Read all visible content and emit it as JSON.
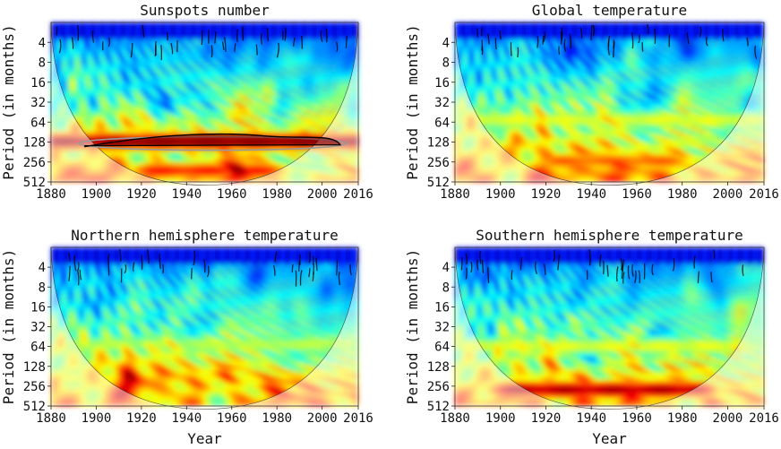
{
  "chart_data": [
    {
      "type": "heatmap",
      "title": "Sunspots number",
      "xlabel": "",
      "ylabel": "Period (in months)",
      "xticks": [
        "1880",
        "1900",
        "1920",
        "1940",
        "1960",
        "1980",
        "2000",
        "2016"
      ],
      "yticks": [
        "4",
        "8",
        "16",
        "32",
        "64",
        "128",
        "256",
        "512"
      ],
      "xlim": [
        1880,
        2016
      ],
      "ylim": [
        2,
        512
      ],
      "yscale": "log2",
      "colormap": "jet",
      "cone_of_influence": true,
      "dominant_period_months": 128,
      "significant_band": {
        "start_year": 1895,
        "end_year": 2008,
        "period_low": 100,
        "period_high": 150
      },
      "high_power_regions": [
        {
          "start_year": 1880,
          "end_year": 2016,
          "period": 128,
          "strength": 0.97
        },
        {
          "start_year": 1925,
          "end_year": 1975,
          "period": 360,
          "strength": 0.85
        }
      ]
    },
    {
      "type": "heatmap",
      "title": "Global temperature",
      "xlabel": "",
      "ylabel": "Period (in months)",
      "xticks": [
        "1880",
        "1900",
        "1920",
        "1940",
        "1960",
        "1980",
        "2000",
        "2016"
      ],
      "yticks": [
        "4",
        "8",
        "16",
        "32",
        "64",
        "128",
        "256",
        "512"
      ],
      "xlim": [
        1880,
        2016
      ],
      "ylim": [
        2,
        512
      ],
      "yscale": "log2",
      "colormap": "jet",
      "cone_of_influence": true,
      "high_power_regions": [
        {
          "start_year": 1925,
          "end_year": 1975,
          "period": 256,
          "strength": 0.78
        },
        {
          "start_year": 1885,
          "end_year": 2010,
          "period": 60,
          "strength": 0.6
        }
      ]
    },
    {
      "type": "heatmap",
      "title": "Northern hemisphere temperature",
      "xlabel": "Year",
      "ylabel": "Period (in months)",
      "xticks": [
        "1880",
        "1900",
        "1920",
        "1940",
        "1960",
        "1980",
        "2000",
        "2016"
      ],
      "yticks": [
        "4",
        "8",
        "16",
        "32",
        "64",
        "128",
        "256",
        "512"
      ],
      "xlim": [
        1880,
        2016
      ],
      "ylim": [
        2,
        512
      ],
      "yscale": "log2",
      "colormap": "jet",
      "cone_of_influence": true,
      "high_power_regions": [
        {
          "start_year": 1890,
          "end_year": 2010,
          "period": 200,
          "strength": 0.62
        },
        {
          "start_year": 1885,
          "end_year": 2010,
          "period": 60,
          "strength": 0.55
        }
      ]
    },
    {
      "type": "heatmap",
      "title": "Southern hemisphere temperature",
      "xlabel": "Year",
      "ylabel": "Period (in months)",
      "xticks": [
        "1880",
        "1900",
        "1920",
        "1940",
        "1960",
        "1980",
        "2000",
        "2016"
      ],
      "yticks": [
        "4",
        "8",
        "16",
        "32",
        "64",
        "128",
        "256",
        "512"
      ],
      "xlim": [
        1880,
        2016
      ],
      "ylim": [
        2,
        512
      ],
      "yscale": "log2",
      "colormap": "jet",
      "cone_of_influence": true,
      "high_power_regions": [
        {
          "start_year": 1905,
          "end_year": 1985,
          "period": 300,
          "strength": 0.95
        },
        {
          "start_year": 1885,
          "end_year": 2005,
          "period": 64,
          "strength": 0.6
        }
      ]
    }
  ]
}
